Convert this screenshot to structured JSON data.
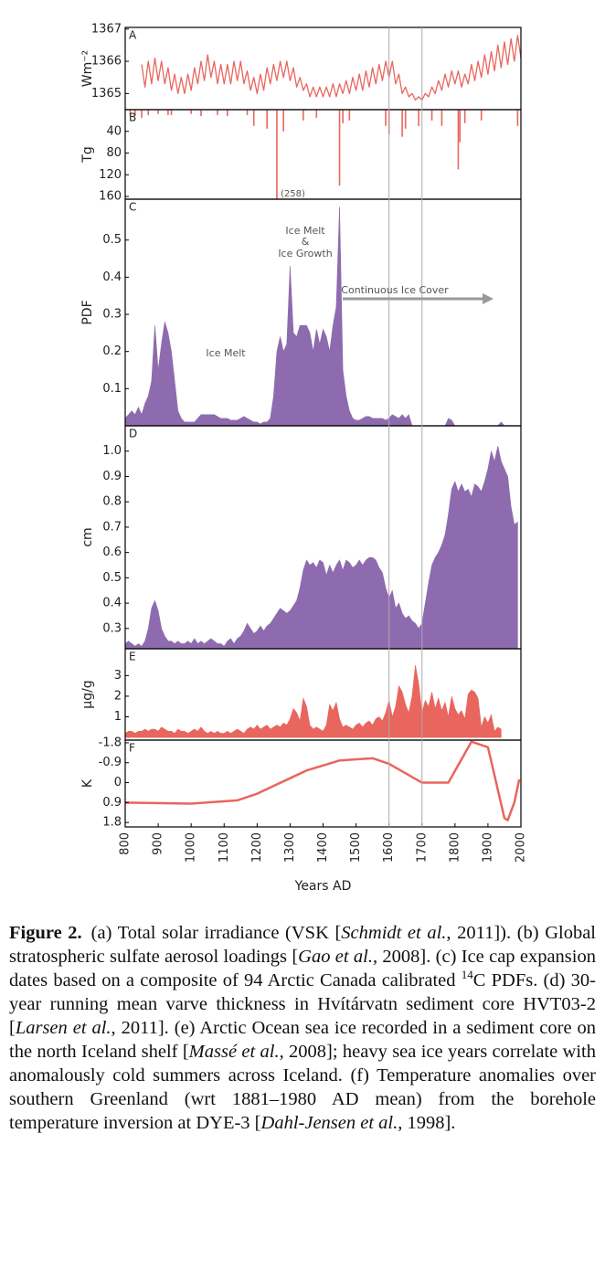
{
  "chart_data": [
    {
      "type": "line",
      "panel": "A",
      "ylabel": "Wm⁻²",
      "color": "#e8665e",
      "xlim": [
        800,
        2000
      ],
      "ylim": [
        1364.5,
        1367.05
      ],
      "yticks": [
        1365,
        1366,
        1367
      ],
      "x": [
        850,
        860,
        870,
        880,
        890,
        900,
        910,
        920,
        930,
        940,
        950,
        960,
        970,
        980,
        990,
        1000,
        1010,
        1020,
        1030,
        1040,
        1050,
        1060,
        1070,
        1080,
        1090,
        1100,
        1110,
        1120,
        1130,
        1140,
        1150,
        1160,
        1170,
        1180,
        1190,
        1200,
        1210,
        1220,
        1230,
        1240,
        1250,
        1260,
        1270,
        1280,
        1290,
        1300,
        1310,
        1320,
        1330,
        1340,
        1350,
        1360,
        1370,
        1380,
        1390,
        1400,
        1410,
        1420,
        1430,
        1440,
        1450,
        1460,
        1470,
        1480,
        1490,
        1500,
        1510,
        1520,
        1530,
        1540,
        1550,
        1560,
        1570,
        1580,
        1590,
        1600,
        1610,
        1620,
        1630,
        1640,
        1650,
        1660,
        1670,
        1680,
        1690,
        1700,
        1710,
        1720,
        1730,
        1740,
        1750,
        1760,
        1770,
        1780,
        1790,
        1800,
        1810,
        1820,
        1830,
        1840,
        1850,
        1860,
        1870,
        1880,
        1890,
        1900,
        1910,
        1920,
        1930,
        1940,
        1950,
        1960,
        1970,
        1980,
        1990,
        2000
      ],
      "values": [
        1365.9,
        1365.2,
        1366.0,
        1365.3,
        1366.1,
        1365.4,
        1366.0,
        1365.3,
        1365.8,
        1365.1,
        1365.6,
        1365.0,
        1365.5,
        1365.0,
        1365.6,
        1365.1,
        1365.8,
        1365.3,
        1366.0,
        1365.4,
        1366.2,
        1365.5,
        1366.0,
        1365.3,
        1365.9,
        1365.3,
        1365.9,
        1365.3,
        1366.0,
        1365.4,
        1366.0,
        1365.3,
        1365.7,
        1365.1,
        1365.5,
        1365.0,
        1365.6,
        1365.1,
        1365.8,
        1365.3,
        1365.9,
        1365.4,
        1366.0,
        1365.5,
        1366.0,
        1365.4,
        1365.8,
        1365.2,
        1365.5,
        1365.1,
        1365.3,
        1364.9,
        1365.2,
        1364.9,
        1365.2,
        1364.9,
        1365.2,
        1364.9,
        1365.3,
        1364.9,
        1365.3,
        1365.0,
        1365.4,
        1365.0,
        1365.5,
        1365.1,
        1365.6,
        1365.1,
        1365.7,
        1365.2,
        1365.8,
        1365.3,
        1365.9,
        1365.4,
        1366.0,
        1365.5,
        1366.0,
        1365.3,
        1365.6,
        1365.0,
        1365.2,
        1364.9,
        1365.0,
        1364.8,
        1364.9,
        1364.8,
        1365.0,
        1364.9,
        1365.2,
        1365.0,
        1365.4,
        1365.1,
        1365.6,
        1365.2,
        1365.7,
        1365.3,
        1365.7,
        1365.2,
        1365.6,
        1365.3,
        1365.9,
        1365.4,
        1366.0,
        1365.5,
        1366.2,
        1365.6,
        1366.3,
        1365.7,
        1366.5,
        1365.8,
        1366.6,
        1365.9,
        1366.7,
        1366.0,
        1366.8,
        1366.1
      ]
    },
    {
      "type": "bar",
      "panel": "B",
      "ylabel": "Tg",
      "color": "#e8665e",
      "y_inverted": true,
      "xlim": [
        800,
        2000
      ],
      "ylim": [
        0,
        165
      ],
      "yticks": [
        40,
        80,
        120,
        160
      ],
      "x": [
        815,
        830,
        850,
        870,
        900,
        930,
        940,
        1000,
        1030,
        1080,
        1110,
        1170,
        1190,
        1230,
        1260,
        1280,
        1340,
        1380,
        1450,
        1460,
        1480,
        1590,
        1600,
        1640,
        1650,
        1690,
        1730,
        1760,
        1810,
        1815,
        1830,
        1880,
        1990
      ],
      "values": [
        10,
        12,
        15,
        10,
        8,
        10,
        10,
        8,
        12,
        10,
        12,
        10,
        30,
        35,
        258,
        40,
        20,
        15,
        140,
        25,
        20,
        30,
        45,
        50,
        35,
        30,
        20,
        30,
        110,
        60,
        25,
        20,
        30
      ],
      "value_labels": [
        null,
        null,
        null,
        null,
        null,
        null,
        null,
        null,
        null,
        null,
        null,
        null,
        null,
        null,
        "(258)",
        null,
        null,
        null,
        null,
        null,
        null,
        null,
        null,
        null,
        null,
        null,
        null,
        null,
        null,
        null,
        null,
        null,
        null
      ]
    },
    {
      "type": "area",
      "panel": "C",
      "ylabel": "PDF",
      "color": "#8e6bae",
      "xlim": [
        800,
        2000
      ],
      "ylim": [
        0,
        0.61
      ],
      "yticks": [
        0.1,
        0.2,
        0.3,
        0.4,
        0.5
      ],
      "annotations": [
        "Ice Melt",
        "Ice Melt",
        "&",
        "Ice Growth",
        "Continuous Ice Cover"
      ],
      "x": [
        800,
        810,
        820,
        830,
        840,
        850,
        860,
        870,
        880,
        890,
        900,
        910,
        920,
        930,
        940,
        950,
        960,
        970,
        980,
        990,
        1000,
        1010,
        1020,
        1030,
        1040,
        1050,
        1060,
        1070,
        1080,
        1090,
        1100,
        1110,
        1120,
        1130,
        1140,
        1150,
        1160,
        1170,
        1180,
        1190,
        1200,
        1210,
        1220,
        1230,
        1240,
        1250,
        1260,
        1270,
        1280,
        1290,
        1300,
        1310,
        1320,
        1330,
        1340,
        1350,
        1360,
        1370,
        1380,
        1390,
        1400,
        1410,
        1420,
        1430,
        1440,
        1450,
        1460,
        1470,
        1480,
        1490,
        1500,
        1510,
        1520,
        1530,
        1540,
        1550,
        1560,
        1570,
        1580,
        1590,
        1600,
        1610,
        1620,
        1630,
        1640,
        1650,
        1660,
        1670,
        1680,
        1690,
        1700,
        1710,
        1720,
        1730,
        1740,
        1750,
        1760,
        1770,
        1780,
        1790,
        1800,
        1810,
        1820,
        1830,
        1840,
        1850,
        1860,
        1870,
        1880,
        1890,
        1900,
        1910,
        1920,
        1930,
        1940,
        1950,
        1960,
        1970,
        1980,
        1990,
        2000
      ],
      "values": [
        0.02,
        0.03,
        0.04,
        0.03,
        0.05,
        0.03,
        0.06,
        0.08,
        0.12,
        0.27,
        0.15,
        0.22,
        0.28,
        0.25,
        0.2,
        0.12,
        0.04,
        0.02,
        0.01,
        0.01,
        0.01,
        0.01,
        0.02,
        0.03,
        0.03,
        0.03,
        0.03,
        0.03,
        0.025,
        0.02,
        0.02,
        0.02,
        0.015,
        0.015,
        0.015,
        0.02,
        0.025,
        0.02,
        0.015,
        0.01,
        0.01,
        0.005,
        0.01,
        0.01,
        0.02,
        0.08,
        0.2,
        0.24,
        0.2,
        0.22,
        0.43,
        0.25,
        0.24,
        0.27,
        0.27,
        0.27,
        0.25,
        0.2,
        0.26,
        0.22,
        0.26,
        0.24,
        0.2,
        0.27,
        0.32,
        0.59,
        0.15,
        0.08,
        0.04,
        0.02,
        0.015,
        0.015,
        0.02,
        0.025,
        0.025,
        0.02,
        0.02,
        0.02,
        0.02,
        0.015,
        0.02,
        0.03,
        0.025,
        0.02,
        0.03,
        0.02,
        0.03,
        0,
        0,
        0,
        0,
        0,
        0,
        0,
        0,
        0,
        0,
        0,
        0.02,
        0.015,
        0,
        0,
        0,
        0,
        0,
        0,
        0,
        0,
        0,
        0,
        0,
        0,
        0,
        0,
        0.01,
        0,
        0,
        0,
        0,
        0,
        0
      ]
    },
    {
      "type": "area",
      "panel": "D",
      "ylabel": "cm",
      "color": "#8e6bae",
      "xlim": [
        800,
        2000
      ],
      "ylim": [
        0.22,
        1.1
      ],
      "yticks": [
        0.3,
        0.4,
        0.5,
        0.6,
        0.7,
        0.8,
        0.9,
        {
          "value": 1,
          "label": "1.0"
        }
      ],
      "x": [
        800,
        810,
        820,
        830,
        840,
        850,
        860,
        870,
        880,
        890,
        900,
        910,
        920,
        930,
        940,
        950,
        960,
        970,
        980,
        990,
        1000,
        1010,
        1020,
        1030,
        1040,
        1050,
        1060,
        1070,
        1080,
        1090,
        1100,
        1110,
        1120,
        1130,
        1140,
        1150,
        1160,
        1170,
        1180,
        1190,
        1200,
        1210,
        1220,
        1230,
        1240,
        1250,
        1260,
        1270,
        1280,
        1290,
        1300,
        1310,
        1320,
        1330,
        1340,
        1350,
        1360,
        1370,
        1380,
        1390,
        1400,
        1410,
        1420,
        1430,
        1440,
        1450,
        1460,
        1470,
        1480,
        1490,
        1500,
        1510,
        1520,
        1530,
        1540,
        1550,
        1560,
        1570,
        1580,
        1590,
        1600,
        1610,
        1620,
        1630,
        1640,
        1650,
        1660,
        1670,
        1680,
        1690,
        1700,
        1710,
        1720,
        1730,
        1740,
        1750,
        1760,
        1770,
        1780,
        1790,
        1800,
        1810,
        1820,
        1830,
        1840,
        1850,
        1860,
        1870,
        1880,
        1890,
        1900,
        1910,
        1920,
        1930,
        1940,
        1950,
        1960,
        1970,
        1980,
        1990
      ],
      "values": [
        0.24,
        0.25,
        0.24,
        0.23,
        0.24,
        0.23,
        0.25,
        0.3,
        0.38,
        0.41,
        0.37,
        0.3,
        0.27,
        0.25,
        0.25,
        0.24,
        0.25,
        0.24,
        0.24,
        0.25,
        0.24,
        0.26,
        0.24,
        0.25,
        0.24,
        0.25,
        0.26,
        0.25,
        0.24,
        0.24,
        0.23,
        0.25,
        0.26,
        0.24,
        0.26,
        0.27,
        0.29,
        0.32,
        0.3,
        0.28,
        0.29,
        0.31,
        0.29,
        0.31,
        0.32,
        0.34,
        0.36,
        0.38,
        0.37,
        0.36,
        0.37,
        0.39,
        0.41,
        0.46,
        0.53,
        0.57,
        0.55,
        0.56,
        0.54,
        0.57,
        0.56,
        0.51,
        0.55,
        0.52,
        0.55,
        0.57,
        0.53,
        0.57,
        0.56,
        0.54,
        0.55,
        0.57,
        0.55,
        0.57,
        0.58,
        0.58,
        0.57,
        0.54,
        0.52,
        0.46,
        0.42,
        0.45,
        0.38,
        0.4,
        0.36,
        0.34,
        0.35,
        0.33,
        0.32,
        0.3,
        0.32,
        0.4,
        0.48,
        0.55,
        0.58,
        0.6,
        0.63,
        0.67,
        0.75,
        0.85,
        0.88,
        0.84,
        0.87,
        0.84,
        0.85,
        0.82,
        0.87,
        0.86,
        0.84,
        0.88,
        0.93,
        1.0,
        0.96,
        1.02,
        0.96,
        0.93,
        0.9,
        0.78,
        0.71,
        0.72
      ]
    },
    {
      "type": "area",
      "panel": "E",
      "ylabel": "µg/g",
      "color": "#e8665e",
      "xlim": [
        800,
        2000
      ],
      "ylim": [
        -0.13,
        4.3
      ],
      "yticks": [
        1,
        2,
        3
      ],
      "x": [
        800,
        810,
        820,
        830,
        840,
        850,
        860,
        870,
        880,
        890,
        900,
        910,
        920,
        930,
        940,
        950,
        960,
        970,
        980,
        990,
        1000,
        1010,
        1020,
        1030,
        1040,
        1050,
        1060,
        1070,
        1080,
        1090,
        1100,
        1110,
        1120,
        1130,
        1140,
        1150,
        1160,
        1170,
        1180,
        1190,
        1200,
        1210,
        1220,
        1230,
        1240,
        1250,
        1260,
        1270,
        1280,
        1290,
        1300,
        1310,
        1320,
        1330,
        1340,
        1350,
        1360,
        1370,
        1380,
        1390,
        1400,
        1410,
        1420,
        1430,
        1440,
        1450,
        1460,
        1470,
        1480,
        1490,
        1500,
        1510,
        1520,
        1530,
        1540,
        1550,
        1560,
        1570,
        1580,
        1590,
        1600,
        1610,
        1620,
        1630,
        1640,
        1650,
        1660,
        1670,
        1680,
        1690,
        1700,
        1710,
        1720,
        1730,
        1740,
        1750,
        1760,
        1770,
        1780,
        1790,
        1800,
        1810,
        1820,
        1830,
        1840,
        1850,
        1860,
        1870,
        1880,
        1890,
        1900,
        1910,
        1920,
        1930,
        1940
      ],
      "values": [
        0.2,
        0.3,
        0.3,
        0.2,
        0.3,
        0.3,
        0.4,
        0.3,
        0.4,
        0.4,
        0.3,
        0.5,
        0.4,
        0.3,
        0.3,
        0.2,
        0.4,
        0.3,
        0.3,
        0.2,
        0.3,
        0.4,
        0.3,
        0.5,
        0.3,
        0.2,
        0.3,
        0.2,
        0.3,
        0.2,
        0.2,
        0.3,
        0.2,
        0.3,
        0.4,
        0.3,
        0.2,
        0.4,
        0.5,
        0.4,
        0.6,
        0.4,
        0.5,
        0.6,
        0.4,
        0.5,
        0.6,
        0.5,
        0.7,
        0.6,
        0.9,
        1.4,
        1.2,
        0.8,
        1.9,
        1.5,
        0.6,
        0.4,
        0.5,
        0.4,
        0.3,
        0.6,
        1.6,
        1.3,
        1.7,
        0.9,
        0.5,
        0.6,
        0.5,
        0.4,
        0.6,
        0.7,
        0.5,
        0.7,
        0.8,
        0.6,
        0.9,
        1.0,
        0.8,
        1.2,
        1.8,
        1.0,
        1.5,
        2.5,
        2.2,
        1.6,
        1.2,
        2.0,
        3.5,
        2.6,
        1.2,
        1.8,
        1.5,
        2.2,
        1.4,
        1.9,
        1.3,
        1.7,
        1.0,
        2.0,
        1.4,
        1.1,
        1.3,
        0.9,
        2.1,
        2.3,
        2.2,
        1.9,
        0.5,
        1.0,
        0.7,
        1.1,
        0.3,
        0.5,
        0.4
      ]
    },
    {
      "type": "line",
      "panel": "F",
      "ylabel": "K",
      "xlabel": "Years AD",
      "color": "#e8665e",
      "y_inverted": true,
      "line_width": 2.5,
      "xlim": [
        800,
        2000
      ],
      "xticks": [
        800,
        900,
        1000,
        1100,
        1200,
        1300,
        1400,
        1500,
        1600,
        1700,
        1800,
        1900,
        2000
      ],
      "ylim": [
        -1.92,
        2.0
      ],
      "yticks": [
        -1.8,
        -0.9,
        0,
        0.9,
        1.8
      ],
      "vlines": [
        1600,
        1700
      ],
      "x": [
        800,
        1000,
        1140,
        1200,
        1300,
        1350,
        1450,
        1550,
        1600,
        1700,
        1780,
        1850,
        1900,
        1950,
        1960,
        1980,
        1995
      ],
      "values": [
        0.9,
        0.95,
        0.8,
        0.5,
        -0.2,
        -0.55,
        -1.0,
        -1.1,
        -0.85,
        0,
        0,
        -1.85,
        -1.6,
        1.6,
        1.7,
        0.9,
        -0.15
      ]
    }
  ],
  "caption": {
    "label": "Figure 2.",
    "runs": [
      "(a) Total solar irradiance (VSK [",
      "Schmidt et al.",
      ", 2011]). (b) Global stratospheric sulfate aerosol loadings [",
      "Gao et al.",
      ", 2008]. (c) Ice cap expansion dates based on a composite of 94 Arctic Canada calibrated ",
      "14",
      "C PDFs. (d) 30-year running mean varve thickness in Hvítárvatn sediment core HVT03-2 [",
      "Larsen et al.",
      ", 2011]. (e) Arctic Ocean sea ice recorded in a sediment core on the north Iceland shelf [",
      "Massé et al.",
      ", 2008]; heavy sea ice years correlate with anomalously cold summers across Iceland. (f) Temperature anomalies over southern Greenland (wrt 1881–1980 AD mean) from the borehole temperature inversion at DYE-3 [",
      "Dahl-Jensen et al.",
      ", 1998]."
    ]
  }
}
